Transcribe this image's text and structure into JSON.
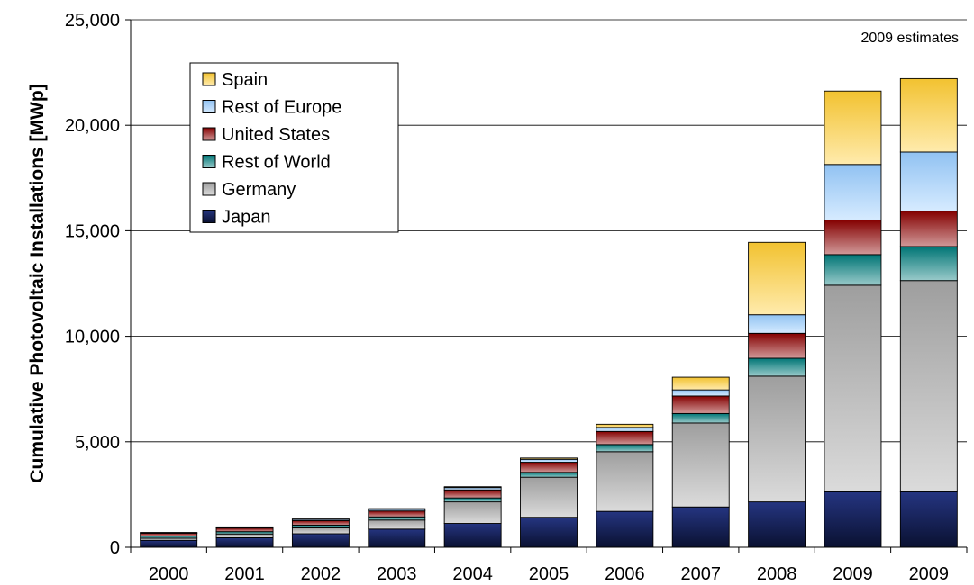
{
  "chart_data": {
    "type": "bar",
    "stacked": true,
    "title": "",
    "xlabel": "",
    "ylabel": "Cumulative Photovoltaic Installations [MWp]",
    "annotation": "2009 estimates",
    "categories": [
      "2000",
      "2001",
      "2002",
      "2003",
      "2004",
      "2005",
      "2006",
      "2007",
      "2008",
      "2009",
      "2009"
    ],
    "ylim": [
      0,
      25000
    ],
    "yticks": [
      0,
      5000,
      10000,
      15000,
      20000,
      25000
    ],
    "ytick_labels": [
      "0",
      "5,000",
      "10,000",
      "15,000",
      "20,000",
      "25,000"
    ],
    "grid": true,
    "legend_position": "top-left",
    "series": [
      {
        "name": "Japan",
        "color": "#1a2a7a",
        "values": [
          330,
          450,
          640,
          860,
          1130,
          1420,
          1700,
          1910,
          2150,
          2630,
          2630
        ]
      },
      {
        "name": "Germany",
        "color": "#a6a6a6",
        "values": [
          100,
          180,
          280,
          430,
          1020,
          1900,
          2830,
          3980,
          5960,
          9790,
          10010
        ]
      },
      {
        "name": "Rest of World",
        "color": "#007b7b",
        "values": [
          100,
          110,
          130,
          150,
          190,
          230,
          340,
          450,
          850,
          1450,
          1610
        ]
      },
      {
        "name": "United States",
        "color": "#8b0000",
        "values": [
          140,
          170,
          210,
          280,
          380,
          480,
          620,
          830,
          1180,
          1640,
          1680
        ]
      },
      {
        "name": "Rest of Europe",
        "color": "#99ccff",
        "values": [
          20,
          40,
          60,
          80,
          110,
          140,
          190,
          290,
          880,
          2630,
          2800
        ]
      },
      {
        "name": "Spain",
        "color": "#ffcc33",
        "values": [
          10,
          15,
          20,
          30,
          40,
          60,
          150,
          600,
          3430,
          3480,
          3480
        ]
      }
    ],
    "legend_order": [
      "Spain",
      "Rest of Europe",
      "United States",
      "Rest of World",
      "Germany",
      "Japan"
    ]
  }
}
